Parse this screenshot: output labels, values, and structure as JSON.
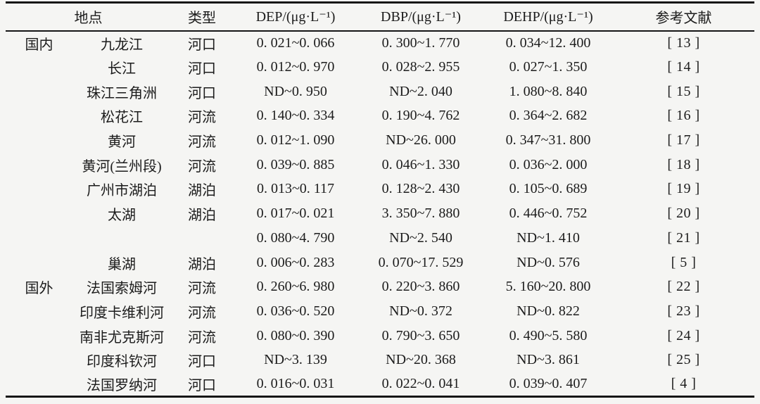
{
  "table": {
    "columns": [
      "地点",
      "类型",
      "DEP/(μg·L⁻¹)",
      "DBP/(μg·L⁻¹)",
      "DEHP/(μg·L⁻¹)",
      "参考文献"
    ],
    "rows": [
      {
        "group": "国内",
        "location": "九龙江",
        "type": "河口",
        "dep": "0. 021~0. 066",
        "dbp": "0. 300~1. 770",
        "dehp": "0. 034~12. 400",
        "ref": "[ 13 ]"
      },
      {
        "group": "",
        "location": "长江",
        "type": "河口",
        "dep": "0. 012~0. 970",
        "dbp": "0. 028~2. 955",
        "dehp": "0. 027~1. 350",
        "ref": "[ 14 ]"
      },
      {
        "group": "",
        "location": "珠江三角洲",
        "type": "河口",
        "dep": "ND~0. 950",
        "dbp": "ND~2. 040",
        "dehp": "1. 080~8. 840",
        "ref": "[ 15 ]"
      },
      {
        "group": "",
        "location": "松花江",
        "type": "河流",
        "dep": "0. 140~0. 334",
        "dbp": "0. 190~4. 762",
        "dehp": "0. 364~2. 682",
        "ref": "[ 16 ]"
      },
      {
        "group": "",
        "location": "黄河",
        "type": "河流",
        "dep": "0. 012~1. 090",
        "dbp": "ND~26. 000",
        "dehp": "0. 347~31. 800",
        "ref": "[ 17 ]"
      },
      {
        "group": "",
        "location": "黄河(兰州段)",
        "type": "河流",
        "dep": "0. 039~0. 885",
        "dbp": "0. 046~1. 330",
        "dehp": "0. 036~2. 000",
        "ref": "[ 18 ]"
      },
      {
        "group": "",
        "location": "广州市湖泊",
        "type": "湖泊",
        "dep": "0. 013~0. 117",
        "dbp": "0. 128~2. 430",
        "dehp": "0. 105~0. 689",
        "ref": "[ 19 ]"
      },
      {
        "group": "",
        "location": "太湖",
        "type": "湖泊",
        "dep": "0. 017~0. 021",
        "dbp": "3. 350~7. 880",
        "dehp": "0. 446~0. 752",
        "ref": "[ 20 ]"
      },
      {
        "group": "",
        "location": "",
        "type": "",
        "dep": "0. 080~4. 790",
        "dbp": "ND~2. 540",
        "dehp": "ND~1. 410",
        "ref": "[ 21 ]"
      },
      {
        "group": "",
        "location": "巢湖",
        "type": "湖泊",
        "dep": "0. 006~0. 283",
        "dbp": "0. 070~17. 529",
        "dehp": "ND~0. 576",
        "ref": "[ 5 ]"
      },
      {
        "group": "国外",
        "location": "法国索姆河",
        "type": "河流",
        "dep": "0. 260~6. 980",
        "dbp": "0. 220~3. 860",
        "dehp": "5. 160~20. 800",
        "ref": "[ 22 ]"
      },
      {
        "group": "",
        "location": "印度卡维利河",
        "type": "河流",
        "dep": "0. 036~0. 520",
        "dbp": "ND~0. 372",
        "dehp": "ND~0. 822",
        "ref": "[ 23 ]"
      },
      {
        "group": "",
        "location": "南非尤克斯河",
        "type": "河流",
        "dep": "0. 080~0. 390",
        "dbp": "0. 790~3. 650",
        "dehp": "0. 490~5. 580",
        "ref": "[ 24 ]"
      },
      {
        "group": "",
        "location": "印度科钦河",
        "type": "河口",
        "dep": "ND~3. 139",
        "dbp": "ND~20. 368",
        "dehp": "ND~3. 861",
        "ref": "[ 25 ]"
      },
      {
        "group": "",
        "location": "法国罗纳河",
        "type": "河口",
        "dep": "0. 016~0. 031",
        "dbp": "0. 022~0. 041",
        "dehp": "0. 039~0. 407",
        "ref": "[ 4 ]"
      }
    ]
  }
}
